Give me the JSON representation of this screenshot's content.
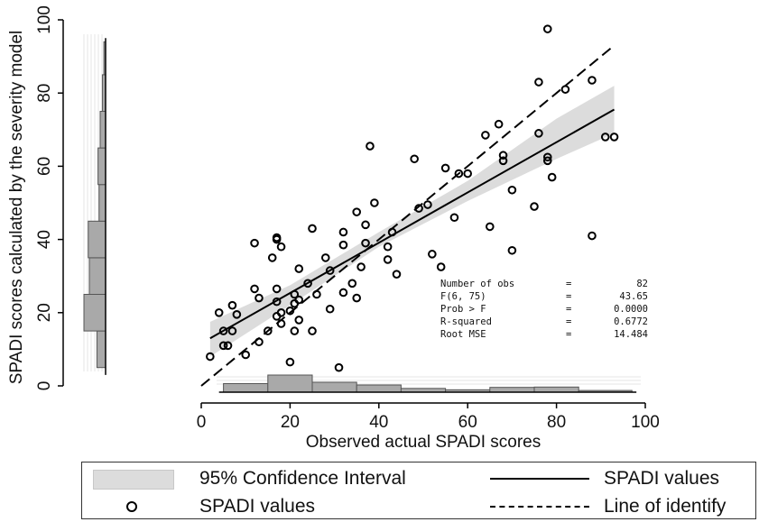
{
  "chart_data": {
    "type": "scatter",
    "title": "",
    "xlabel": "Observed actual SPADI scores",
    "ylabel": "SPADI scores calculated by the severity model",
    "xlim": [
      0,
      100
    ],
    "ylim": [
      0,
      100
    ],
    "x_ticks": [
      "0",
      "20",
      "40",
      "60",
      "80",
      "100"
    ],
    "y_ticks": [
      "0",
      "20",
      "40",
      "60",
      "80",
      "100"
    ],
    "grid": false,
    "series": [
      {
        "name": "SPADI values",
        "kind": "scatter",
        "marker": "hollow-circle",
        "points": [
          [
            2,
            8
          ],
          [
            4,
            20
          ],
          [
            5,
            15
          ],
          [
            5,
            11
          ],
          [
            6,
            11
          ],
          [
            7,
            22
          ],
          [
            7,
            15
          ],
          [
            8,
            19.5
          ],
          [
            10,
            8.5
          ],
          [
            12,
            39
          ],
          [
            12,
            26.5
          ],
          [
            13,
            12
          ],
          [
            13,
            24
          ],
          [
            15,
            15
          ],
          [
            16,
            35
          ],
          [
            17,
            40.5
          ],
          [
            17,
            40
          ],
          [
            17,
            26.5
          ],
          [
            17,
            23
          ],
          [
            17,
            19
          ],
          [
            18,
            38
          ],
          [
            18,
            17
          ],
          [
            18,
            20
          ],
          [
            20,
            6.5
          ],
          [
            20,
            20.5
          ],
          [
            21,
            22.5
          ],
          [
            21,
            25
          ],
          [
            21,
            15
          ],
          [
            22,
            32
          ],
          [
            22,
            18
          ],
          [
            22,
            23.5
          ],
          [
            24,
            28
          ],
          [
            25,
            43
          ],
          [
            25,
            15
          ],
          [
            26,
            25
          ],
          [
            28,
            35
          ],
          [
            29,
            31.5
          ],
          [
            29,
            21
          ],
          [
            31,
            5
          ],
          [
            32,
            38.5
          ],
          [
            32,
            42
          ],
          [
            32,
            25.5
          ],
          [
            34,
            28
          ],
          [
            35,
            24
          ],
          [
            35,
            47.5
          ],
          [
            36,
            32.5
          ],
          [
            37,
            44
          ],
          [
            37,
            39
          ],
          [
            38,
            65.5
          ],
          [
            39,
            50
          ],
          [
            42,
            38
          ],
          [
            42,
            34.5
          ],
          [
            43,
            42
          ],
          [
            44,
            30.5
          ],
          [
            48,
            62
          ],
          [
            49,
            48.5
          ],
          [
            51,
            49.5
          ],
          [
            52,
            36
          ],
          [
            54,
            32.5
          ],
          [
            55,
            59.5
          ],
          [
            57,
            46
          ],
          [
            58,
            58
          ],
          [
            60,
            58
          ],
          [
            64,
            68.5
          ],
          [
            65,
            43.5
          ],
          [
            67,
            71.5
          ],
          [
            68,
            61.5
          ],
          [
            68,
            63
          ],
          [
            70,
            37
          ],
          [
            70,
            53.5
          ],
          [
            75,
            49
          ],
          [
            76,
            83
          ],
          [
            76,
            69
          ],
          [
            78,
            97.5
          ],
          [
            78,
            62.5
          ],
          [
            78,
            61.5
          ],
          [
            79,
            57
          ],
          [
            82,
            81
          ],
          [
            88,
            41
          ],
          [
            88,
            83.5
          ],
          [
            93,
            68
          ],
          [
            91,
            68
          ]
        ]
      },
      {
        "name": "SPADI values",
        "kind": "fit-line",
        "x": [
          2,
          93
        ],
        "y": [
          13,
          75.5
        ]
      },
      {
        "name": "95% Confidence Interval",
        "kind": "band",
        "x": [
          2,
          20,
          40,
          60,
          80,
          93
        ],
        "lower": [
          8,
          22,
          38,
          50.5,
          62,
          69
        ],
        "upper": [
          17.5,
          27.5,
          42,
          56,
          73,
          82
        ]
      },
      {
        "name": "Line of identify",
        "kind": "reference-line",
        "x": [
          0,
          93
        ],
        "y": [
          0,
          93
        ]
      }
    ],
    "x_histogram": {
      "bin_edges": [
        5,
        15,
        25,
        35,
        45,
        55,
        65,
        75,
        85,
        97
      ],
      "relative_heights": [
        0.5,
        1.0,
        0.58,
        0.42,
        0.22,
        0.14,
        0.28,
        0.3,
        0.1
      ]
    },
    "y_histogram": {
      "bin_edges": [
        5,
        15,
        25,
        35,
        45,
        55,
        65,
        75,
        85,
        94
      ],
      "relative_heights": [
        0.4,
        1.0,
        0.75,
        0.8,
        0.3,
        0.35,
        0.25,
        0.15,
        0.08
      ]
    },
    "stats": [
      {
        "label": "Number of obs",
        "eq": "=",
        "value": "82"
      },
      {
        "label": "F(6, 75)",
        "eq": "=",
        "value": "43.65"
      },
      {
        "label": "Prob > F",
        "eq": "=",
        "value": "0.0000"
      },
      {
        "label": "R-squared",
        "eq": "=",
        "value": "0.6772"
      },
      {
        "label": "Root MSE",
        "eq": "=",
        "value": "14.484"
      }
    ],
    "colors": {
      "band": "#dcdcdc",
      "hist_fill": "#a9a9a9",
      "ink": "#000000"
    }
  },
  "legend": {
    "ci_label": "95% Confidence Interval",
    "fit_label": "SPADI values",
    "points_label": "SPADI values",
    "identity_label": "Line of identify"
  }
}
